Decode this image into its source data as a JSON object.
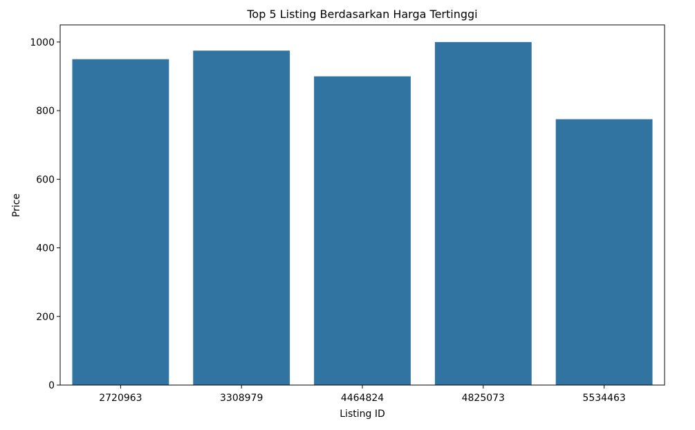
{
  "chart_data": {
    "type": "bar",
    "title": "Top 5 Listing Berdasarkan Harga Tertinggi",
    "xlabel": "Listing ID",
    "ylabel": "Price",
    "categories": [
      "2720963",
      "3308979",
      "4464824",
      "4825073",
      "5534463"
    ],
    "values": [
      950,
      975,
      900,
      1000,
      775
    ],
    "ylim": [
      0,
      1050
    ],
    "yticks": [
      0,
      200,
      400,
      600,
      800,
      1000
    ],
    "grid": false,
    "legend": "none",
    "bar_color": "#3274a1"
  }
}
